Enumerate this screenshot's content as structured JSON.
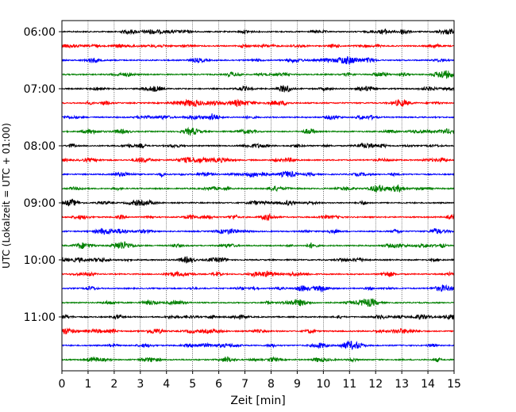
{
  "chart_data": {
    "type": "line",
    "title": "",
    "xlabel": "Zeit  [min]",
    "ylabel": "UTC (Lokalzeit = UTC + 01:00)",
    "xlim": [
      0,
      15
    ],
    "x_ticks": [
      "0",
      "1",
      "2",
      "3",
      "4",
      "5",
      "6",
      "7",
      "8",
      "9",
      "10",
      "11",
      "12",
      "13",
      "14",
      "15"
    ],
    "y_tick_labels": [
      "06:00",
      "07:00",
      "08:00",
      "09:00",
      "10:00",
      "11:00"
    ],
    "grid_x": true,
    "grid_y": false,
    "legend": "none",
    "series_colors": [
      "#000000",
      "#ff0000",
      "#0000ff",
      "#008000"
    ],
    "traces": [
      {
        "start": "06:00",
        "color": "#000000"
      },
      {
        "start": "06:15",
        "color": "#ff0000"
      },
      {
        "start": "06:30",
        "color": "#0000ff"
      },
      {
        "start": "06:45",
        "color": "#008000"
      },
      {
        "start": "07:00",
        "color": "#000000"
      },
      {
        "start": "07:15",
        "color": "#ff0000"
      },
      {
        "start": "07:30",
        "color": "#0000ff"
      },
      {
        "start": "07:45",
        "color": "#008000"
      },
      {
        "start": "08:00",
        "color": "#000000"
      },
      {
        "start": "08:15",
        "color": "#ff0000"
      },
      {
        "start": "08:30",
        "color": "#0000ff"
      },
      {
        "start": "08:45",
        "color": "#008000"
      },
      {
        "start": "09:00",
        "color": "#000000"
      },
      {
        "start": "09:15",
        "color": "#ff0000"
      },
      {
        "start": "09:30",
        "color": "#0000ff"
      },
      {
        "start": "09:45",
        "color": "#008000"
      },
      {
        "start": "10:00",
        "color": "#000000"
      },
      {
        "start": "10:15",
        "color": "#ff0000"
      },
      {
        "start": "10:30",
        "color": "#0000ff"
      },
      {
        "start": "10:45",
        "color": "#008000"
      },
      {
        "start": "11:00",
        "color": "#000000"
      },
      {
        "start": "11:15",
        "color": "#ff0000"
      },
      {
        "start": "11:30",
        "color": "#0000ff"
      },
      {
        "start": "11:45",
        "color": "#008000"
      }
    ]
  }
}
